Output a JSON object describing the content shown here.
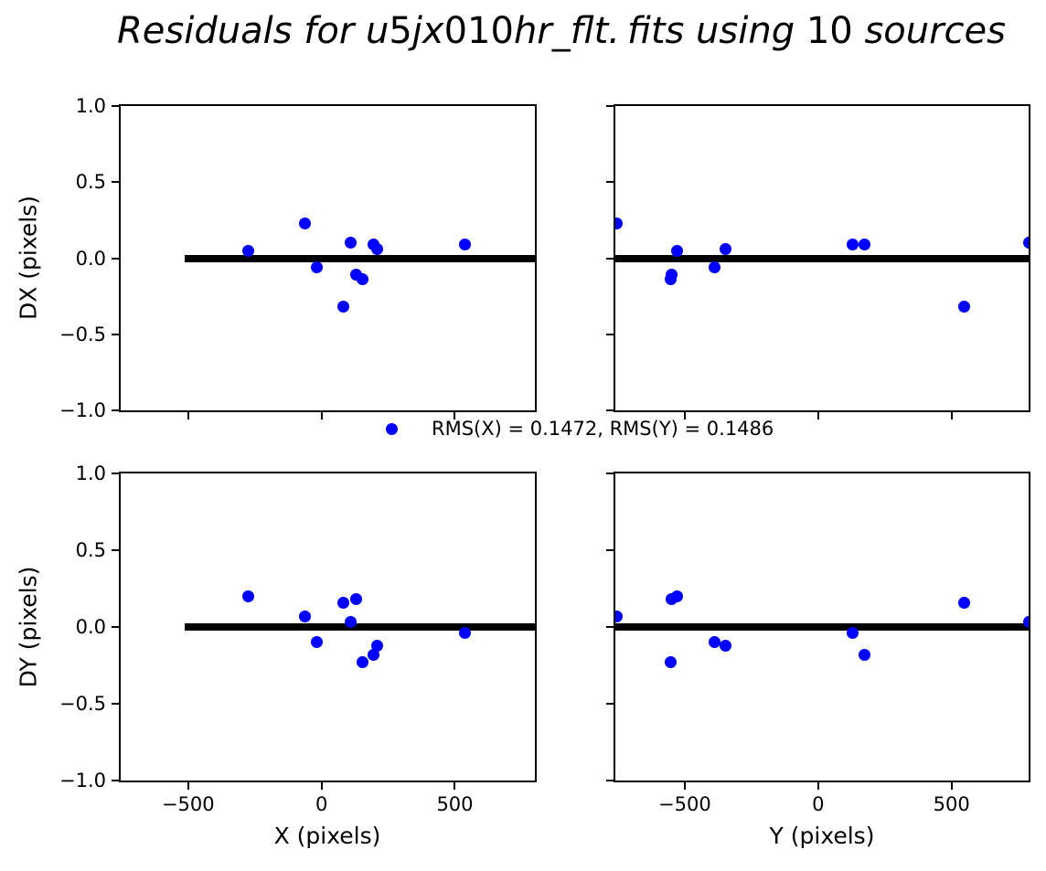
{
  "title": {
    "full": "Residuals for u5jx010hr_flt.fits using 10 sources",
    "segments": [
      {
        "text": "Residuals for u",
        "style": "italic"
      },
      {
        "text": "5",
        "style": "normal"
      },
      {
        "text": "jx",
        "style": "italic"
      },
      {
        "text": "010",
        "style": "normal"
      },
      {
        "text": "hr_flt. fits using ",
        "style": "italic"
      },
      {
        "text": "10",
        "style": "normal"
      },
      {
        "text": " sources",
        "style": "italic"
      }
    ]
  },
  "legend": {
    "label": "RMS(X) = 0.1472, RMS(Y) = 0.1486",
    "marker": "circle"
  },
  "colors": {
    "marker": "#0000ff",
    "zero_line": "#000000",
    "frame": "#000000",
    "text": "#000000",
    "background": "#ffffff"
  },
  "chart_data": {
    "type": "scatter",
    "title": "Residuals for u5jx010hr_flt.fits using 10 sources",
    "n_sources": 10,
    "rms_x": 0.1472,
    "rms_y": 0.1486,
    "grid": false,
    "legend_position": "below top-left panel, centered between columns",
    "axes_labels": {
      "dx": "DX (pixels)",
      "dy": "DY (pixels)",
      "x": "X (pixels)",
      "y": "Y (pixels)"
    },
    "ylim": [
      -1.0,
      1.0
    ],
    "sources": [
      {
        "x": -275,
        "y": -527,
        "dx": 0.05,
        "dy": 0.2
      },
      {
        "x": -63,
        "y": -755,
        "dx": 0.23,
        "dy": 0.07
      },
      {
        "x": -17,
        "y": -389,
        "dx": -0.06,
        "dy": -0.1
      },
      {
        "x": 83,
        "y": 546,
        "dx": -0.32,
        "dy": 0.16
      },
      {
        "x": 108,
        "y": 789,
        "dx": 0.1,
        "dy": 0.03
      },
      {
        "x": 131,
        "y": -549,
        "dx": -0.11,
        "dy": 0.18
      },
      {
        "x": 153,
        "y": -553,
        "dx": -0.14,
        "dy": -0.23
      },
      {
        "x": 196,
        "y": 175,
        "dx": 0.09,
        "dy": -0.18
      },
      {
        "x": 208,
        "y": -346,
        "dx": 0.06,
        "dy": -0.12
      },
      {
        "x": 538,
        "y": 129,
        "dx": 0.09,
        "dy": -0.04
      }
    ],
    "panels": [
      {
        "pos": "tl",
        "name": "dx-vs-x",
        "x_field": "x",
        "y_field": "dx",
        "xlim": [
          -753,
          800
        ],
        "ylim": [
          -1,
          1
        ],
        "xticks": [
          {
            "v": -500,
            "label": "−500"
          },
          {
            "v": 0,
            "label": "0"
          },
          {
            "v": 500,
            "label": "500"
          }
        ],
        "yticks": [
          {
            "v": 1,
            "label": "1.0"
          },
          {
            "v": 0.5,
            "label": "0.5"
          },
          {
            "v": 0,
            "label": "0.0"
          },
          {
            "v": -0.5,
            "label": "−0.5"
          },
          {
            "v": -1,
            "label": "−1.0"
          }
        ],
        "show_xtick_labels": false,
        "show_ytick_labels": true,
        "zero_line_span": [
          -513,
          800
        ]
      },
      {
        "pos": "tr",
        "name": "dx-vs-y",
        "x_field": "y",
        "y_field": "dx",
        "xlim": [
          -760,
          789
        ],
        "ylim": [
          -1,
          1
        ],
        "xticks": [
          {
            "v": -500,
            "label": "−500"
          },
          {
            "v": 0,
            "label": "0"
          },
          {
            "v": 500,
            "label": "500"
          }
        ],
        "yticks": [
          {
            "v": 1,
            "label": "1.0"
          },
          {
            "v": 0.5,
            "label": "0.5"
          },
          {
            "v": 0,
            "label": "0.0"
          },
          {
            "v": -0.5,
            "label": "−0.5"
          },
          {
            "v": -1,
            "label": "−1.0"
          }
        ],
        "show_xtick_labels": false,
        "show_ytick_labels": false,
        "zero_line_span": [
          -760,
          789
        ]
      },
      {
        "pos": "bl",
        "name": "dy-vs-x",
        "x_field": "x",
        "y_field": "dy",
        "xlim": [
          -753,
          800
        ],
        "ylim": [
          -1,
          1
        ],
        "xticks": [
          {
            "v": -500,
            "label": "−500"
          },
          {
            "v": 0,
            "label": "0"
          },
          {
            "v": 500,
            "label": "500"
          }
        ],
        "yticks": [
          {
            "v": 1,
            "label": "1.0"
          },
          {
            "v": 0.5,
            "label": "0.5"
          },
          {
            "v": 0,
            "label": "0.0"
          },
          {
            "v": -0.5,
            "label": "−0.5"
          },
          {
            "v": -1,
            "label": "−1.0"
          }
        ],
        "show_xtick_labels": true,
        "show_ytick_labels": true,
        "zero_line_span": [
          -513,
          800
        ]
      },
      {
        "pos": "br",
        "name": "dy-vs-y",
        "x_field": "y",
        "y_field": "dy",
        "xlim": [
          -760,
          789
        ],
        "ylim": [
          -1,
          1
        ],
        "xticks": [
          {
            "v": -500,
            "label": "−500"
          },
          {
            "v": 0,
            "label": "0"
          },
          {
            "v": 500,
            "label": "500"
          }
        ],
        "yticks": [
          {
            "v": 1,
            "label": "1.0"
          },
          {
            "v": 0.5,
            "label": "0.5"
          },
          {
            "v": 0,
            "label": "0.0"
          },
          {
            "v": -0.5,
            "label": "−0.5"
          },
          {
            "v": -1,
            "label": "−1.0"
          }
        ],
        "show_xtick_labels": true,
        "show_ytick_labels": false,
        "zero_line_span": [
          -760,
          789
        ]
      }
    ]
  }
}
